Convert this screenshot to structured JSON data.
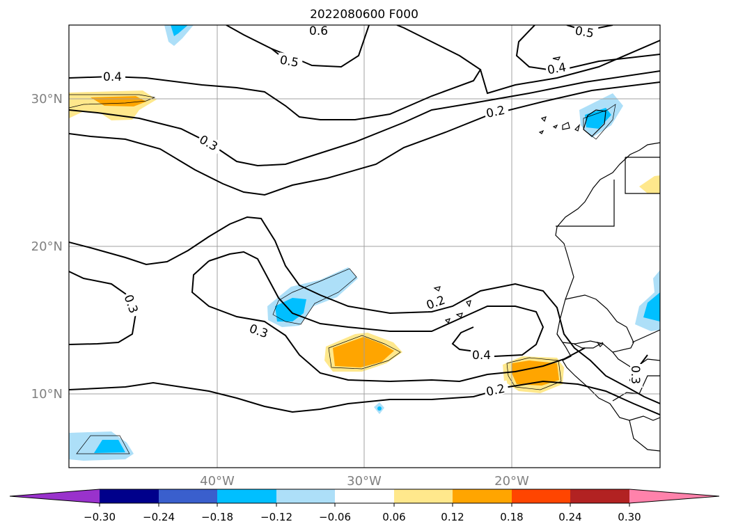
{
  "title": "2022080600 F000",
  "latitude_labels": [
    "30°N",
    "20°N",
    "10°N"
  ],
  "longitude_labels": [
    "40°W",
    "30°W",
    "20°W"
  ],
  "contour_labels": [
    "0.6",
    "0.5",
    "0.5",
    "0.4",
    "0.4",
    "0.2",
    "0.3",
    "0.3",
    "0.3",
    "0.2",
    "0.4",
    "0.2",
    "0.3"
  ],
  "colorbar": {
    "tick_labels": [
      "−0.30",
      "−0.24",
      "−0.18",
      "−0.12",
      "−0.06",
      "0.06",
      "0.12",
      "0.18",
      "0.24",
      "0.30"
    ],
    "colors": [
      "#9932CC",
      "#00008B",
      "#3A5FCD",
      "#00BFFF",
      "#ADDFF8",
      "#FFFFFF",
      "#FFE88C",
      "#FFA500",
      "#FF4500",
      "#B22222",
      "#FF82AB"
    ]
  }
}
